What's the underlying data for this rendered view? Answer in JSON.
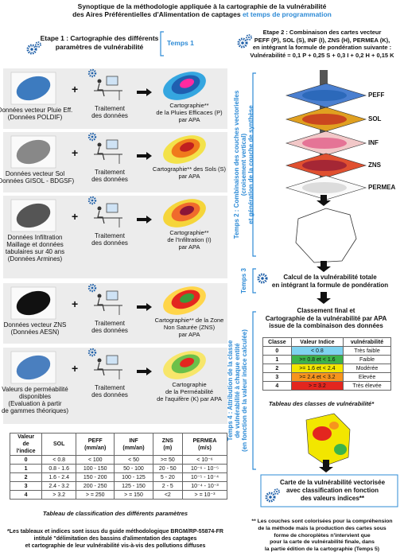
{
  "title": {
    "line1": "Synoptique de la méthodologie appliquée à la cartographie de la vulnérabilité",
    "line2a": "des Aires Préférentielles d'Alimentation de captages",
    "line2b": "et temps de programmation"
  },
  "step1": {
    "lines": [
      "Etape 1 : Cartographie des différents",
      "paramètres de vulnérabilité"
    ],
    "temps": "Temps 1"
  },
  "plus": "+",
  "rows": [
    {
      "source": [
        "Données vecteur Pluie Eff.",
        "(Données POLDIF)"
      ],
      "treatment": [
        "Traitement",
        "des données"
      ],
      "result": [
        "Cartographie**",
        "de la Pluies Efficaces (P)",
        "par APA"
      ]
    },
    {
      "source": [
        "Données vecteur Sol",
        "(Données GISOL - BDGSF)"
      ],
      "treatment": [
        "Traitement",
        "des données"
      ],
      "result": [
        "Cartographie** des Sols (S)",
        "par APA"
      ]
    },
    {
      "source": [
        "Données Infiltration",
        "Maillage et données",
        "tabulaires sur 40 ans",
        "(Données Armines)"
      ],
      "treatment": [
        "Traitement",
        "des données"
      ],
      "result": [
        "Cartographie**",
        "de l'Infiltration (I)",
        "par APA"
      ]
    },
    {
      "source": [
        "Données vecteur  ZNS",
        "(Données AESN)"
      ],
      "treatment": [
        "Traitement",
        "des données"
      ],
      "result": [
        "Cartographie** de la Zone",
        "Non Saturée (ZNS)",
        "par APA"
      ]
    },
    {
      "source": [
        "Valeurs de perméabilité",
        "disponibles",
        "(Evaluation à partir",
        "de gammes théoriques)"
      ],
      "treatment": [
        "Traitement",
        "des données"
      ],
      "result": [
        "Cartographie",
        "de la Perméabilité",
        "de l'aquifère (K) par APA"
      ]
    }
  ],
  "table1": {
    "header": [
      [
        "Valeur",
        "de",
        "l'indice"
      ],
      [
        "SOL"
      ],
      [
        "PEFF",
        "(mm/an)"
      ],
      [
        "INF",
        "(mm/an)"
      ],
      [
        "ZNS",
        "(m)"
      ],
      [
        "PERMEA",
        "(m/s)"
      ]
    ],
    "rows": [
      [
        "0",
        "< 0.8",
        "< 100",
        "< 50",
        ">= 50",
        "< 10⁻⁶"
      ],
      [
        "1",
        "0.8 - 1.6",
        "100 - 150",
        "50 - 100",
        "20 - 50",
        "10⁻⁶ - 10⁻⁵"
      ],
      [
        "2",
        "1.6 - 2.4",
        "150 - 200",
        "100 - 125",
        "5 - 20",
        "10⁻⁵ - 10⁻⁴"
      ],
      [
        "3",
        "2.4 - 3.2",
        "200 - 250",
        "125 - 150",
        "2 - 5",
        "10⁻⁴ - 10⁻³"
      ],
      [
        "4",
        "> 3.2",
        "> = 250",
        "> = 150",
        "<2",
        "> = 10⁻³"
      ]
    ],
    "caption": "Tableau de classification des différents paramètres"
  },
  "footnote1": [
    "*Les tableaux et indices sont issus du guide méthodologique BRGM/RP-55874-FR",
    "intitulé \"délimitation des bassins d'alimentation des captages",
    "et cartographie de leur vulnérabilité vis-à-vis des pollutions diffuses"
  ],
  "step2": [
    "Etape 2 : Combinaison des cartes vecteur",
    "PEFF (P), SOL (S), INF (I), ZNS (H), PERMEA (K),",
    "en intégrant la formule de pondération suivante :",
    "Vulnérabilité = 0,1 P + 0,25 S + 0,3 I + 0,2 H + 0,15 K"
  ],
  "layers": [
    "PEFF",
    "SOL",
    "INF",
    "ZNS",
    "PERMEA"
  ],
  "temps2": [
    "Temps 2 : Combinaison des couches vectorielles",
    "(croisement vertical)",
    "et génération de la couche de synthèse"
  ],
  "temps3": "Temps 3",
  "calc": [
    "Calcul de la vulnérabilité totale",
    "en intégrant la formule de pondération"
  ],
  "classement": [
    "Classement final et",
    "Cartographie de la vulnérabilité par APA",
    "issue de la combinaison des données"
  ],
  "temps4": [
    "Temps 4 : Attribution de la classe",
    "de vulnérabilité à chaque entité",
    "(en fonction de la valeur indice calculée)"
  ],
  "table2": {
    "header": [
      "Classe",
      "Valeur Indice",
      "vulnérabilité"
    ],
    "rows": [
      [
        "0",
        "< 0.8",
        "Très faible"
      ],
      [
        "1",
        ">= 0.8 et < 1.6",
        "Faible"
      ],
      [
        "2",
        ">= 1.6 et < 2.4",
        "Modérée"
      ],
      [
        "3",
        ">= 2.4 et < 3.2",
        "Elevée"
      ],
      [
        "4",
        "> = 3.2",
        "Très élevée"
      ]
    ],
    "colors": [
      "#7fd3f0",
      "#3cb34a",
      "#f2e600",
      "#f7941d",
      "#e3261f"
    ],
    "caption": "Tableau des classes de vulnérabilité*"
  },
  "result": [
    "Carte de la vulnérabilité vectorisée",
    "avec classification en fonction",
    "des valeurs indices**"
  ],
  "footnote2": [
    "** Les couches sont colorisées pour la compréhension",
    "de la méthode mais la production des cartes sous",
    "forme de choroplètes n'intervient que",
    "pour la carte de vulnérabilité finale, dans",
    "la partie édition de la cartographie (Temps 5)"
  ]
}
